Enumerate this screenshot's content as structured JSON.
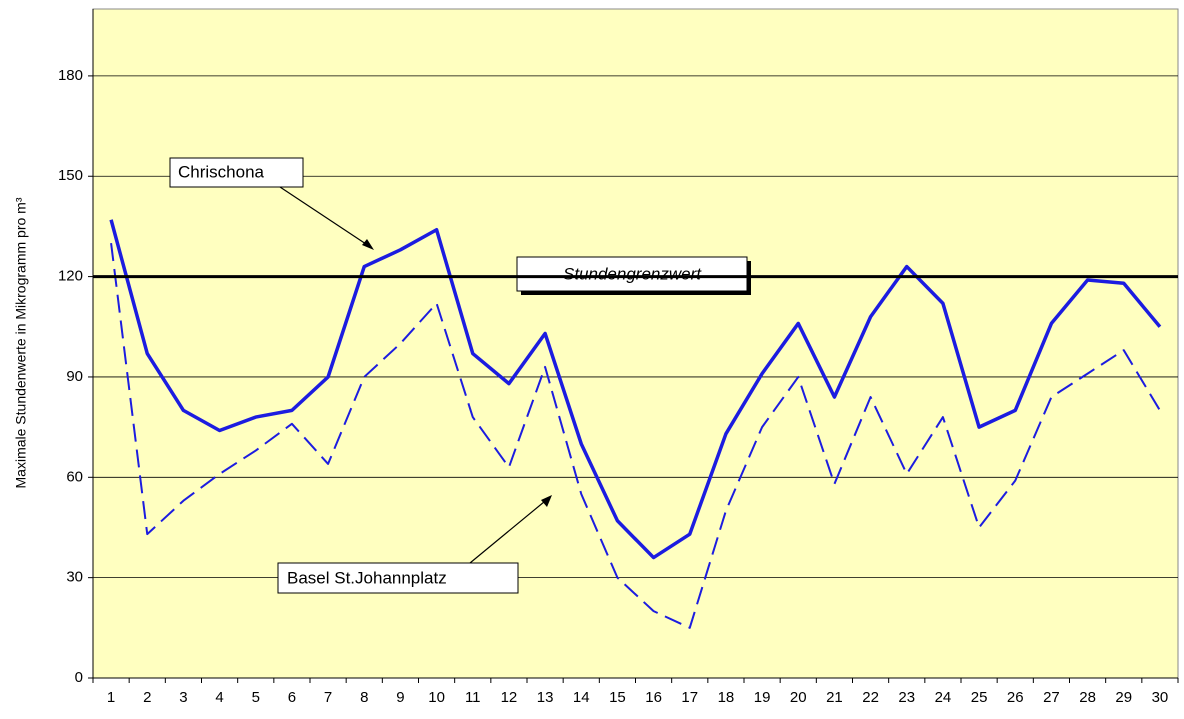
{
  "chart_data": {
    "type": "line",
    "y_label": "Maximale Stundenwerte in Mikrogramm pro m³",
    "categories": [
      "1",
      "2",
      "3",
      "4",
      "5",
      "6",
      "7",
      "8",
      "9",
      "10",
      "11",
      "12",
      "13",
      "14",
      "15",
      "16",
      "17",
      "18",
      "19",
      "20",
      "21",
      "22",
      "23",
      "24",
      "25",
      "26",
      "27",
      "28",
      "29",
      "30"
    ],
    "series": [
      {
        "name": "Chrischona",
        "color": "#1c1ce0",
        "line_style": "solid",
        "values": [
          137,
          97,
          80,
          74,
          78,
          80,
          90,
          123,
          128,
          134,
          97,
          88,
          103,
          70,
          47,
          36,
          43,
          73,
          91,
          106,
          84,
          108,
          123,
          112,
          75,
          80,
          106,
          119,
          118,
          105
        ]
      },
      {
        "name": "Basel St.Johannplatz",
        "color": "#1c1ce0",
        "line_style": "dashed",
        "values": [
          130,
          43,
          53,
          61,
          68,
          76,
          64,
          90,
          100,
          112,
          78,
          63,
          93,
          55,
          30,
          20,
          15,
          50,
          75,
          90,
          58,
          84,
          61,
          78,
          45,
          59,
          84,
          91,
          98,
          80
        ]
      }
    ],
    "threshold": {
      "value": 120,
      "label": "Stundengrenzwert"
    },
    "ylim": [
      0,
      200
    ],
    "yticks": [
      0,
      30,
      60,
      90,
      120,
      150,
      180
    ],
    "grid": true,
    "plot_background": "#ffffc0"
  }
}
